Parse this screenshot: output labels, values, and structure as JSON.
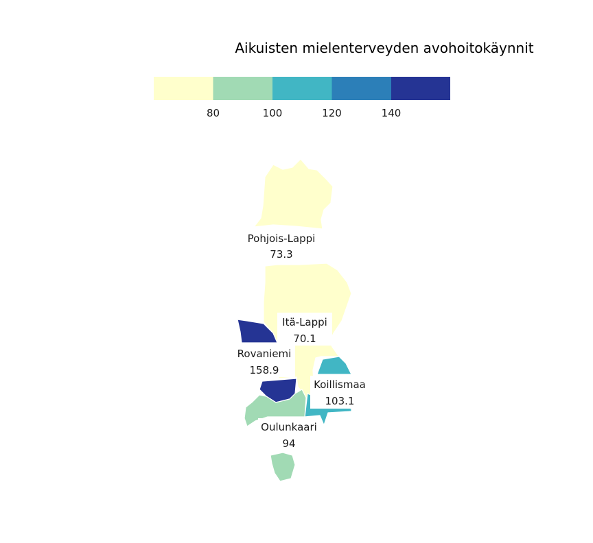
{
  "title": "Aikuisten mielenterveyden avohoitokäynnit",
  "legend": {
    "colors": [
      "#ffffcc",
      "#a1dab4",
      "#41b6c4",
      "#2c7fb8",
      "#253494"
    ],
    "ticks": [
      "80",
      "100",
      "120",
      "140"
    ],
    "breaks": [
      80,
      100,
      120,
      140
    ]
  },
  "regions": [
    {
      "id": "pohjois-lappi",
      "name": "Pohjois-Lappi",
      "value": 73.3,
      "value_label": "73.3",
      "color": "#ffffcc"
    },
    {
      "id": "ita-lappi",
      "name": "Itä-Lappi",
      "value": 70.1,
      "value_label": "70.1",
      "color": "#ffffcc"
    },
    {
      "id": "rovaniemi",
      "name": "Rovaniemi",
      "value": 158.9,
      "value_label": "158.9",
      "color": "#253494"
    },
    {
      "id": "koillismaa",
      "name": "Koillismaa",
      "value": 103.1,
      "value_label": "103.1",
      "color": "#41b6c4"
    },
    {
      "id": "oulunkaari",
      "name": "Oulunkaari",
      "value": 94,
      "value_label": "94",
      "color": "#a1dab4"
    }
  ]
}
